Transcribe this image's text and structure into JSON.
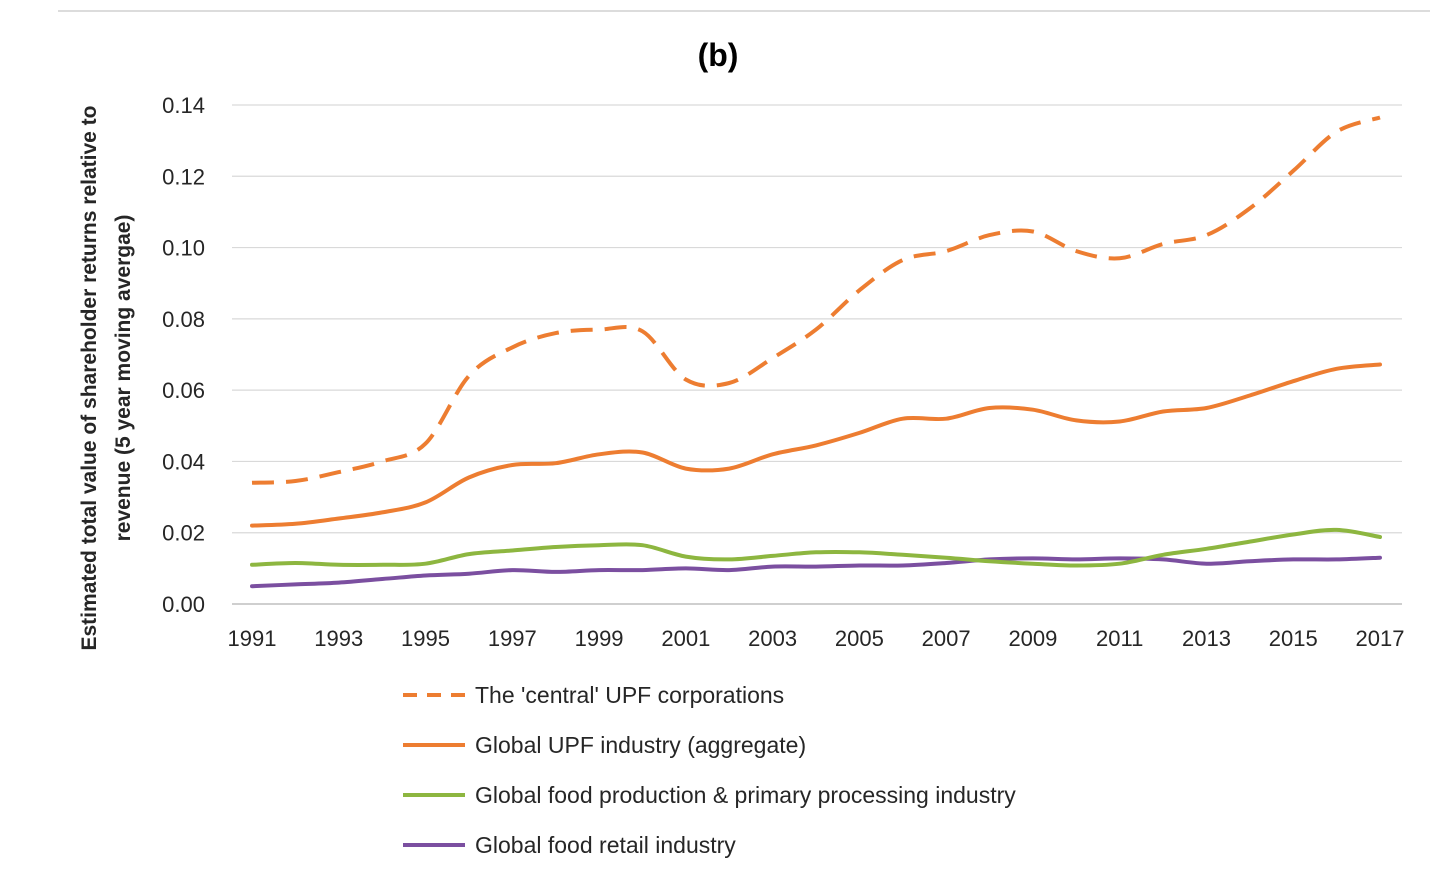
{
  "chart_data": {
    "type": "line",
    "title": "(b)",
    "ylabel_lines": [
      "Estimated total value of shareholder returns relative to",
      "revenue (5 year moving avergae)"
    ],
    "xlabel": "",
    "x": [
      1991,
      1992,
      1993,
      1994,
      1995,
      1996,
      1997,
      1998,
      1999,
      2000,
      2001,
      2002,
      2003,
      2004,
      2005,
      2006,
      2007,
      2008,
      2009,
      2010,
      2011,
      2012,
      2013,
      2014,
      2015,
      2016,
      2017
    ],
    "x_ticks": [
      "1991",
      "1993",
      "1995",
      "1997",
      "1999",
      "2001",
      "2003",
      "2005",
      "2007",
      "2009",
      "2011",
      "2013",
      "2015",
      "2017"
    ],
    "y_ticks": [
      "0.00",
      "0.02",
      "0.04",
      "0.06",
      "0.08",
      "0.10",
      "0.12",
      "0.14"
    ],
    "ylim": [
      0,
      0.14
    ],
    "grid": true,
    "legend_position": "bottom",
    "series": [
      {
        "name": "The 'central' UPF corporations",
        "color": "#ED7D31",
        "dash": true,
        "values": [
          0.034,
          0.0345,
          0.037,
          0.04,
          0.045,
          0.064,
          0.072,
          0.076,
          0.077,
          0.0765,
          0.063,
          0.062,
          0.069,
          0.077,
          0.088,
          0.0965,
          0.099,
          0.1035,
          0.1045,
          0.099,
          0.097,
          0.101,
          0.1035,
          0.111,
          0.1215,
          0.1325,
          0.1365
        ]
      },
      {
        "name": "Global UPF industry (aggregate)",
        "color": "#ED7D31",
        "dash": false,
        "values": [
          0.022,
          0.0225,
          0.024,
          0.0257,
          0.0285,
          0.0355,
          0.039,
          0.0395,
          0.042,
          0.0425,
          0.038,
          0.038,
          0.042,
          0.0445,
          0.048,
          0.052,
          0.052,
          0.055,
          0.0545,
          0.0515,
          0.0512,
          0.054,
          0.055,
          0.0585,
          0.0625,
          0.066,
          0.0672
        ]
      },
      {
        "name": "Global food production & primary processing industry",
        "color": "#8DB640",
        "dash": false,
        "values": [
          0.011,
          0.0115,
          0.011,
          0.011,
          0.0113,
          0.014,
          0.015,
          0.016,
          0.0165,
          0.0165,
          0.0133,
          0.0125,
          0.0135,
          0.0145,
          0.0145,
          0.0138,
          0.013,
          0.012,
          0.0113,
          0.0108,
          0.0113,
          0.0138,
          0.0155,
          0.0175,
          0.0195,
          0.0208,
          0.0188
        ]
      },
      {
        "name": "Global food retail industry",
        "color": "#7B4FA0",
        "dash": false,
        "values": [
          0.005,
          0.0055,
          0.006,
          0.007,
          0.008,
          0.0085,
          0.0095,
          0.009,
          0.0095,
          0.0095,
          0.01,
          0.0095,
          0.0105,
          0.0105,
          0.0108,
          0.0108,
          0.0115,
          0.0125,
          0.0128,
          0.0125,
          0.0128,
          0.0125,
          0.0113,
          0.012,
          0.0125,
          0.0125,
          0.013
        ]
      }
    ]
  }
}
